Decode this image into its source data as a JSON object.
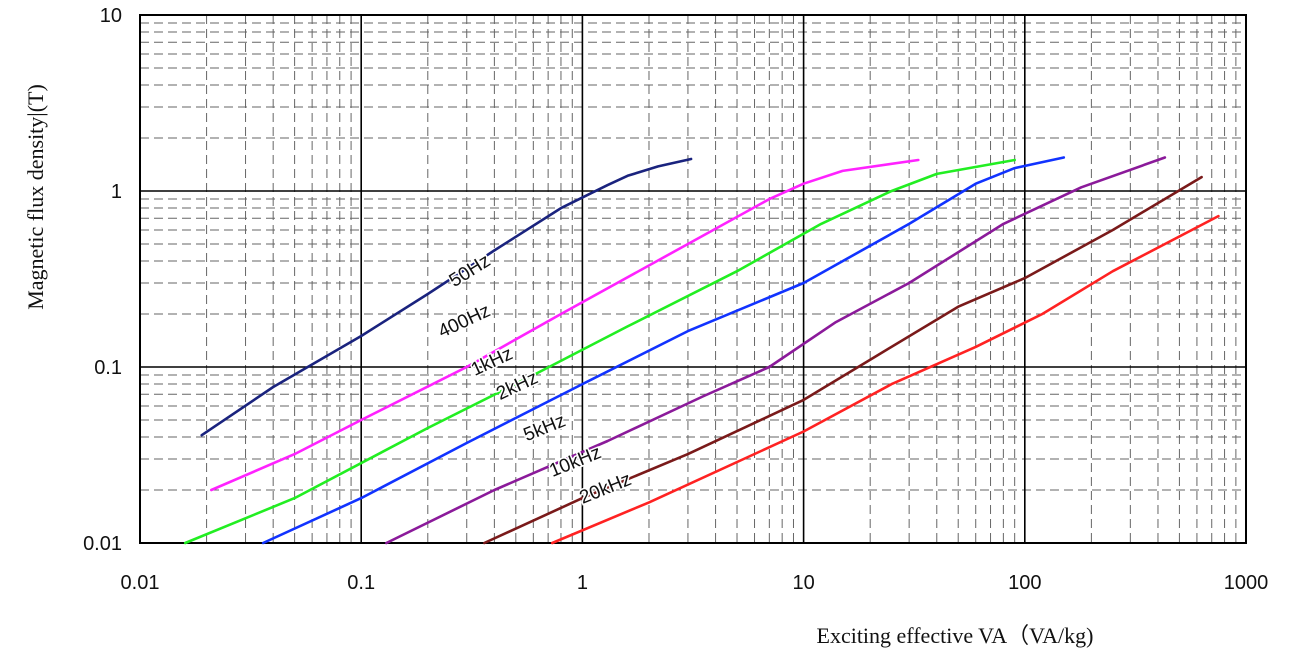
{
  "chart_data": {
    "type": "line",
    "x_scale": "log",
    "y_scale": "log",
    "xlim": [
      0.01,
      1000
    ],
    "ylim": [
      0.01,
      10
    ],
    "xlabel": "Exciting effective VA（VA/kg)",
    "ylabel": "Magnetic flux density|(T)",
    "x_ticks": [
      "0.01",
      "0.1",
      "1",
      "10",
      "100",
      "1000"
    ],
    "y_ticks": [
      "0.01",
      "0.1",
      "1",
      "10"
    ],
    "grid": {
      "major": "solid",
      "minor": "dashed"
    },
    "series": [
      {
        "name": "50Hz",
        "color": "#1a237e",
        "points": [
          [
            0.019,
            0.041
          ],
          [
            0.04,
            0.077
          ],
          [
            0.1,
            0.15
          ],
          [
            0.2,
            0.26
          ],
          [
            0.4,
            0.46
          ],
          [
            0.8,
            0.8
          ],
          [
            1.3,
            1.08
          ],
          [
            1.6,
            1.22
          ],
          [
            2.2,
            1.38
          ],
          [
            3.1,
            1.52
          ]
        ]
      },
      {
        "name": "400Hz",
        "color": "#ff22ff",
        "points": [
          [
            0.021,
            0.02
          ],
          [
            0.05,
            0.032
          ],
          [
            0.1,
            0.05
          ],
          [
            0.3,
            0.1
          ],
          [
            0.8,
            0.2
          ],
          [
            3,
            0.5
          ],
          [
            7,
            0.9
          ],
          [
            10,
            1.1
          ],
          [
            15,
            1.3
          ],
          [
            33,
            1.5
          ]
        ]
      },
      {
        "name": "1kHz",
        "color": "#22ee22",
        "points": [
          [
            0.016,
            0.01
          ],
          [
            0.05,
            0.018
          ],
          [
            0.2,
            0.045
          ],
          [
            0.6,
            0.09
          ],
          [
            1.6,
            0.17
          ],
          [
            5,
            0.35
          ],
          [
            12,
            0.65
          ],
          [
            25,
            1.0
          ],
          [
            40,
            1.25
          ],
          [
            90,
            1.5
          ]
        ]
      },
      {
        "name": "2kHz",
        "color": "#1133ff",
        "points": [
          [
            0.036,
            0.01
          ],
          [
            0.1,
            0.018
          ],
          [
            0.3,
            0.037
          ],
          [
            1,
            0.08
          ],
          [
            3,
            0.16
          ],
          [
            10,
            0.3
          ],
          [
            30,
            0.65
          ],
          [
            60,
            1.1
          ],
          [
            90,
            1.35
          ],
          [
            150,
            1.55
          ]
        ]
      },
      {
        "name": "5kHz",
        "color": "#8b1a9a",
        "points": [
          [
            0.13,
            0.01
          ],
          [
            0.4,
            0.02
          ],
          [
            1.3,
            0.038
          ],
          [
            3.5,
            0.068
          ],
          [
            7,
            0.1
          ],
          [
            14,
            0.18
          ],
          [
            30,
            0.3
          ],
          [
            80,
            0.65
          ],
          [
            180,
            1.05
          ],
          [
            430,
            1.55
          ]
        ]
      },
      {
        "name": "10kHz",
        "color": "#7a1a1a",
        "points": [
          [
            0.36,
            0.01
          ],
          [
            1,
            0.018
          ],
          [
            3,
            0.032
          ],
          [
            10,
            0.065
          ],
          [
            20,
            0.11
          ],
          [
            50,
            0.22
          ],
          [
            100,
            0.32
          ],
          [
            250,
            0.6
          ],
          [
            630,
            1.2
          ]
        ]
      },
      {
        "name": "20kHz",
        "color": "#ff2222",
        "points": [
          [
            0.73,
            0.01
          ],
          [
            2,
            0.017
          ],
          [
            10,
            0.043
          ],
          [
            25,
            0.08
          ],
          [
            60,
            0.13
          ],
          [
            120,
            0.2
          ],
          [
            250,
            0.35
          ],
          [
            750,
            0.72
          ]
        ]
      }
    ],
    "annotations": [
      {
        "text": "50Hz",
        "x": 0.32,
        "y": 0.33,
        "rotation": -32
      },
      {
        "text": "400Hz",
        "x": 0.3,
        "y": 0.17,
        "rotation": -25
      },
      {
        "text": "1kHz",
        "x": 0.4,
        "y": 0.1,
        "rotation": -25
      },
      {
        "text": "2kHz",
        "x": 0.52,
        "y": 0.073,
        "rotation": -25
      },
      {
        "text": "5kHz",
        "x": 0.69,
        "y": 0.042,
        "rotation": -22
      },
      {
        "text": "10kHz",
        "x": 0.95,
        "y": 0.027,
        "rotation": -22
      },
      {
        "text": "20kHz",
        "x": 1.3,
        "y": 0.019,
        "rotation": -22
      }
    ]
  }
}
